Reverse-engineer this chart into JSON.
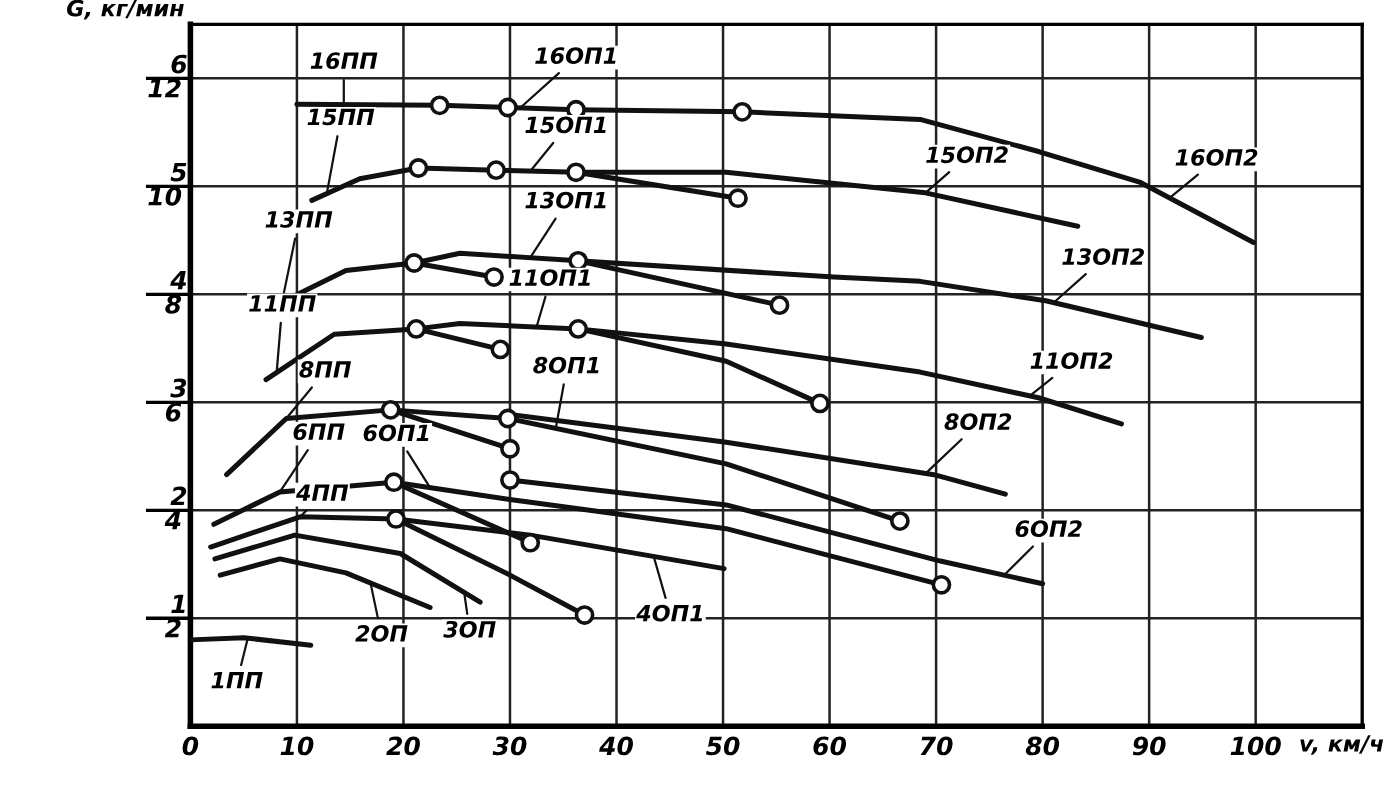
{
  "chart_data": {
    "type": "line",
    "xlabel": "v, км/ч",
    "y2label": "G, кг/мин",
    "xlim": [
      0,
      110
    ],
    "ylim": [
      0,
      6.5
    ],
    "xticks": [
      0,
      10,
      20,
      30,
      40,
      50,
      60,
      70,
      80,
      90,
      100
    ],
    "yticks": [
      1,
      2,
      3,
      4,
      5,
      6
    ],
    "y2lim": [
      0,
      13
    ],
    "y2ticks": [
      2,
      4,
      6,
      8,
      10,
      12
    ],
    "grid": true,
    "line_style": "solid",
    "series": [
      {
        "color": "#111111",
        "x": [
          0,
          5,
          11.3
        ],
        "values": [
          0.8,
          0.82,
          0.75
        ]
      },
      {
        "color": "#111111",
        "x": [
          2.8,
          8.4,
          14.6,
          22.5
        ],
        "values": [
          1.4,
          1.55,
          1.42,
          1.1
        ]
      },
      {
        "color": "#111111",
        "x": [
          2.3,
          9.8,
          19.7,
          27.2
        ],
        "values": [
          1.55,
          1.77,
          1.6,
          1.15
        ]
      },
      {
        "color": "#111111",
        "x": [
          1.9,
          10.3,
          19.3,
          30,
          37
        ],
        "values": [
          1.66,
          1.94,
          1.92,
          1.4,
          1.03
        ]
      },
      {
        "color": "#111111",
        "x": [
          19.3,
          31.9,
          50.1
        ],
        "values": [
          1.92,
          1.77,
          1.46
        ]
      },
      {
        "color": "#111111",
        "x": [
          2.2,
          8.4,
          19.1,
          31.9
        ],
        "values": [
          1.87,
          2.17,
          2.26,
          1.7
        ]
      },
      {
        "color": "#111111",
        "x": [
          19.1,
          30,
          50.3,
          70.5
        ],
        "values": [
          2.26,
          2.1,
          1.83,
          1.31
        ]
      },
      {
        "color": "#111111",
        "x": [
          30,
          50.3,
          70.4,
          80
        ],
        "values": [
          2.28,
          2.05,
          1.53,
          1.32
        ]
      },
      {
        "color": "#111111",
        "x": [
          3.4,
          9,
          18.8,
          30
        ],
        "values": [
          2.33,
          2.85,
          2.93,
          2.57
        ]
      },
      {
        "color": "#111111",
        "x": [
          18.8,
          29.8,
          50.3,
          66.6
        ],
        "values": [
          2.93,
          2.85,
          2.43,
          1.9
        ]
      },
      {
        "color": "#111111",
        "x": [
          29.8,
          50.3,
          69.8,
          76.5
        ],
        "values": [
          2.89,
          2.63,
          2.33,
          2.15
        ]
      },
      {
        "color": "#111111",
        "x": [
          7.1,
          13.5,
          21.2,
          29.1
        ],
        "values": [
          3.21,
          3.63,
          3.68,
          3.49
        ]
      },
      {
        "color": "#111111",
        "x": [
          21.2,
          25.3,
          36.4,
          50.3,
          59.1
        ],
        "values": [
          3.68,
          3.73,
          3.68,
          3.38,
          2.99
        ]
      },
      {
        "color": "#111111",
        "x": [
          36.4,
          50.3,
          68.5,
          79.7,
          87.4
        ],
        "values": [
          3.68,
          3.54,
          3.28,
          3.04,
          2.8
        ]
      },
      {
        "color": "#111111",
        "x": [
          8.4,
          14.6,
          21,
          28.5
        ],
        "values": [
          3.92,
          4.22,
          4.29,
          4.16
        ]
      },
      {
        "color": "#111111",
        "x": [
          21,
          25.3,
          36.4,
          55.3
        ],
        "values": [
          4.29,
          4.38,
          4.31,
          3.9
        ]
      },
      {
        "color": "#111111",
        "x": [
          36.4,
          60.4,
          68.5,
          80.3,
          94.9
        ],
        "values": [
          4.31,
          4.16,
          4.12,
          3.94,
          3.6
        ]
      },
      {
        "color": "#111111",
        "x": [
          11.4,
          15.9,
          21.4
        ],
        "values": [
          4.87,
          5.07,
          5.17
        ]
      },
      {
        "color": "#111111",
        "x": [
          21.4,
          28.7,
          36.2,
          51.4
        ],
        "values": [
          5.17,
          5.15,
          5.13,
          4.89
        ]
      },
      {
        "color": "#111111",
        "x": [
          36.2,
          50.3,
          69,
          83.3
        ],
        "values": [
          5.13,
          5.13,
          4.94,
          4.63
        ]
      },
      {
        "color": "#111111",
        "x": [
          10,
          23.4
        ],
        "values": [
          5.76,
          5.75
        ]
      },
      {
        "color": "#111111",
        "x": [
          23.4,
          36.2,
          51.8
        ],
        "values": [
          5.75,
          5.71,
          5.69
        ]
      },
      {
        "color": "#111111",
        "x": [
          51.8,
          68.5,
          79.7,
          89.1,
          99.8
        ],
        "values": [
          5.69,
          5.62,
          5.32,
          5.04,
          4.48
        ]
      },
      {
        "type": "scatter",
        "marker": "circle",
        "color": "#111111",
        "x": [
          23.4,
          29.8,
          36.2,
          51.8,
          21.4,
          28.7,
          36.2,
          51.4,
          21,
          28.5,
          36.4,
          55.3,
          21.2,
          29.1,
          36.4,
          59.1,
          18.8,
          19.1,
          19.3,
          29.8,
          30,
          30,
          31.9,
          37,
          66.6,
          70.5
        ],
        "values": [
          5.75,
          5.73,
          5.71,
          5.69,
          5.17,
          5.15,
          5.13,
          4.89,
          4.29,
          4.16,
          4.31,
          3.9,
          3.68,
          3.49,
          3.68,
          2.99,
          2.93,
          2.26,
          1.92,
          2.85,
          2.57,
          2.28,
          1.7,
          1.03,
          1.9,
          1.31
        ]
      }
    ],
    "annotations": [
      {
        "text": "16ПП",
        "x": 14.4,
        "y": 5.76
      },
      {
        "text": "16ОП1",
        "x": 31,
        "y": 5.73
      },
      {
        "text": "15ПП",
        "x": 12.8,
        "y": 4.93
      },
      {
        "text": "15ОП1",
        "x": 31.9,
        "y": 5.14
      },
      {
        "text": "13ПП",
        "x": 8.6,
        "y": 3.93
      },
      {
        "text": "13ОП1",
        "x": 31.9,
        "y": 4.34
      },
      {
        "text": "11ПП",
        "x": 8.1,
        "y": 3.28
      },
      {
        "text": "11ОП1",
        "x": 32.5,
        "y": 3.7
      },
      {
        "text": "8ПП",
        "x": 9,
        "y": 2.85
      },
      {
        "text": "8ОП1",
        "x": 34.3,
        "y": 2.76
      },
      {
        "text": "6ПП",
        "x": 8.4,
        "y": 2.17
      },
      {
        "text": "6ОП1",
        "x": 22.5,
        "y": 2.21
      },
      {
        "text": "4ПП",
        "x": 10.3,
        "y": 1.94
      },
      {
        "text": "2ОП",
        "x": 16.9,
        "y": 1.33
      },
      {
        "text": "3ОП",
        "x": 25.7,
        "y": 1.24
      },
      {
        "text": "1ПП",
        "x": 5.4,
        "y": 0.82
      },
      {
        "text": "4ОП1",
        "x": 43.5,
        "y": 1.57
      },
      {
        "text": "15ОП2",
        "x": 69,
        "y": 4.94
      },
      {
        "text": "16ОП2",
        "x": 91.9,
        "y": 4.89
      },
      {
        "text": "13ОП2",
        "x": 81,
        "y": 3.92
      },
      {
        "text": "11ОП2",
        "x": 78.8,
        "y": 3.06
      },
      {
        "text": "8ОП2",
        "x": 69,
        "y": 2.34
      },
      {
        "text": "6ОП2",
        "x": 76.4,
        "y": 1.4
      }
    ]
  }
}
